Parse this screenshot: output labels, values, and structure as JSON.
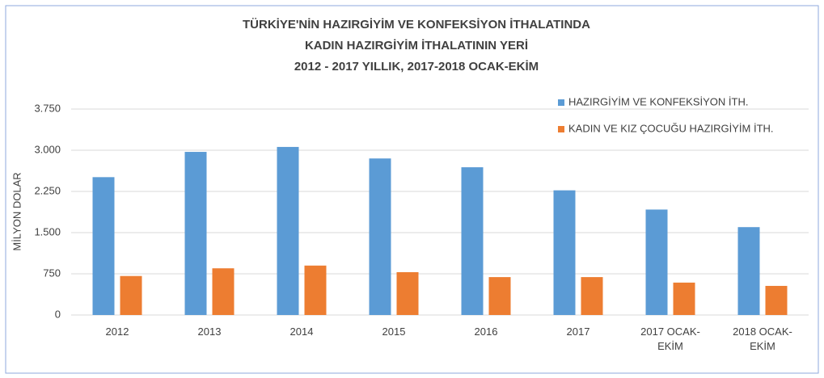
{
  "chart_data": {
    "type": "bar",
    "title": [
      "TÜRKİYE'NİN HAZIRGİYİM VE KONFEKSİYON İTHALATINDA",
      "KADIN HAZIRGİYİM İTHALATININ YERİ",
      "2012 - 2017 YILLIK, 2017-2018 OCAK-EKİM"
    ],
    "y_label": "MİLYON DOLAR",
    "categories": [
      "2012",
      "2013",
      "2014",
      "2015",
      "2016",
      "2017",
      "2017 OCAK-EKİM",
      "2018 OCAK-EKİM"
    ],
    "series": [
      {
        "name": "HAZIRGİYİM VE KONFEKSİYON İTH.",
        "color": "#5b9bd5",
        "values": [
          2510,
          2970,
          3060,
          2850,
          2690,
          2270,
          1920,
          1600
        ]
      },
      {
        "name": "KADIN VE KIZ ÇOCUĞU HAZIRGİYİM İTH.",
        "color": "#ed7d31",
        "values": [
          710,
          850,
          900,
          780,
          690,
          690,
          590,
          530
        ]
      }
    ],
    "ylim": [
      0,
      3750
    ],
    "yticks": [
      0,
      750,
      {
        "value": 1500,
        "label": "1.500"
      },
      {
        "value": 2250,
        "label": "2.250"
      },
      {
        "value": 3000,
        "label": "3.000"
      },
      {
        "value": 3750,
        "label": "3.750"
      }
    ],
    "grid": true,
    "legend": "top-right"
  }
}
